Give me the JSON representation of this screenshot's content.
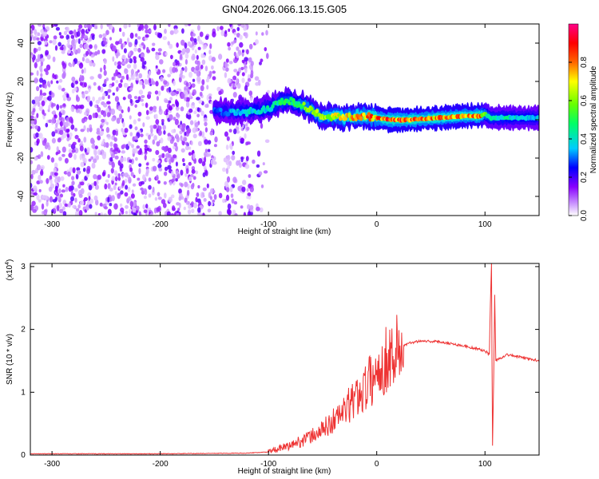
{
  "title": "GN04.2026.066.13.15.G05",
  "chart_data": [
    {
      "type": "heatmap",
      "title": "GN04.2026.066.13.15.G05",
      "xlabel": "Height of straight line (km)",
      "ylabel": "Frequency (Hz)",
      "xlim": [
        -320,
        150
      ],
      "ylim": [
        -50,
        50
      ],
      "x_ticks": [
        -300,
        -200,
        -100,
        0,
        100
      ],
      "y_ticks": [
        -40,
        -20,
        0,
        20,
        40
      ],
      "colorbar": {
        "label": "Normalized spectral amplitude",
        "range": [
          0,
          1
        ],
        "ticks": [
          "0.0",
          "0.2",
          "0.4",
          "0.6",
          "0.8"
        ],
        "colors": [
          "#ffffff",
          "#cc99ff",
          "#8800ff",
          "#0000ff",
          "#00ccff",
          "#00ff66",
          "#66ff00",
          "#ffff00",
          "#ff6600",
          "#ff0000",
          "#ff0088"
        ]
      },
      "track": {
        "x": [
          -150,
          -140,
          -120,
          -100,
          -90,
          -80,
          -70,
          -60,
          -50,
          -40,
          -30,
          -20,
          -10,
          0,
          10,
          30,
          60,
          80,
          95,
          100,
          105,
          120,
          150
        ],
        "frequency": [
          5,
          4,
          4,
          6,
          9,
          10,
          8,
          5,
          1,
          2,
          1,
          2,
          2,
          1,
          0,
          0,
          1,
          2,
          2,
          3,
          1,
          1,
          1
        ],
        "amplitude": [
          0.3,
          0.35,
          0.4,
          0.45,
          0.5,
          0.55,
          0.6,
          0.65,
          0.7,
          0.75,
          0.8,
          0.8,
          0.85,
          0.85,
          0.9,
          0.9,
          0.85,
          0.85,
          0.9,
          0.6,
          0.5,
          0.45,
          0.4
        ]
      }
    },
    {
      "type": "line",
      "xlabel": "Height of straight line (km)",
      "ylabel": "SNR (10 * v/v)",
      "y_multiplier": "(x10^4)",
      "multiplier_base": "(x10",
      "multiplier_exp": "4",
      "xlim": [
        -320,
        150
      ],
      "ylim": [
        0,
        3.05
      ],
      "x_ticks": [
        -300,
        -200,
        -100,
        0,
        100
      ],
      "y_ticks": [
        0,
        1,
        2,
        3
      ],
      "color": "#ee3333",
      "series": [
        {
          "x": [
            -320,
            -200,
            -120,
            -100,
            -80,
            -60,
            -50,
            -40,
            -30,
            -20,
            -10,
            0,
            10,
            20,
            30,
            40,
            60,
            80,
            100,
            104,
            105,
            106,
            107,
            108,
            109,
            110,
            120,
            150
          ],
          "values": [
            0.02,
            0.02,
            0.03,
            0.05,
            0.15,
            0.3,
            0.4,
            0.55,
            0.7,
            0.9,
            1.1,
            1.3,
            1.55,
            1.7,
            1.78,
            1.82,
            1.8,
            1.74,
            1.66,
            1.6,
            2.4,
            3.05,
            0.15,
            1.2,
            2.55,
            1.5,
            1.6,
            1.5
          ]
        }
      ]
    }
  ]
}
